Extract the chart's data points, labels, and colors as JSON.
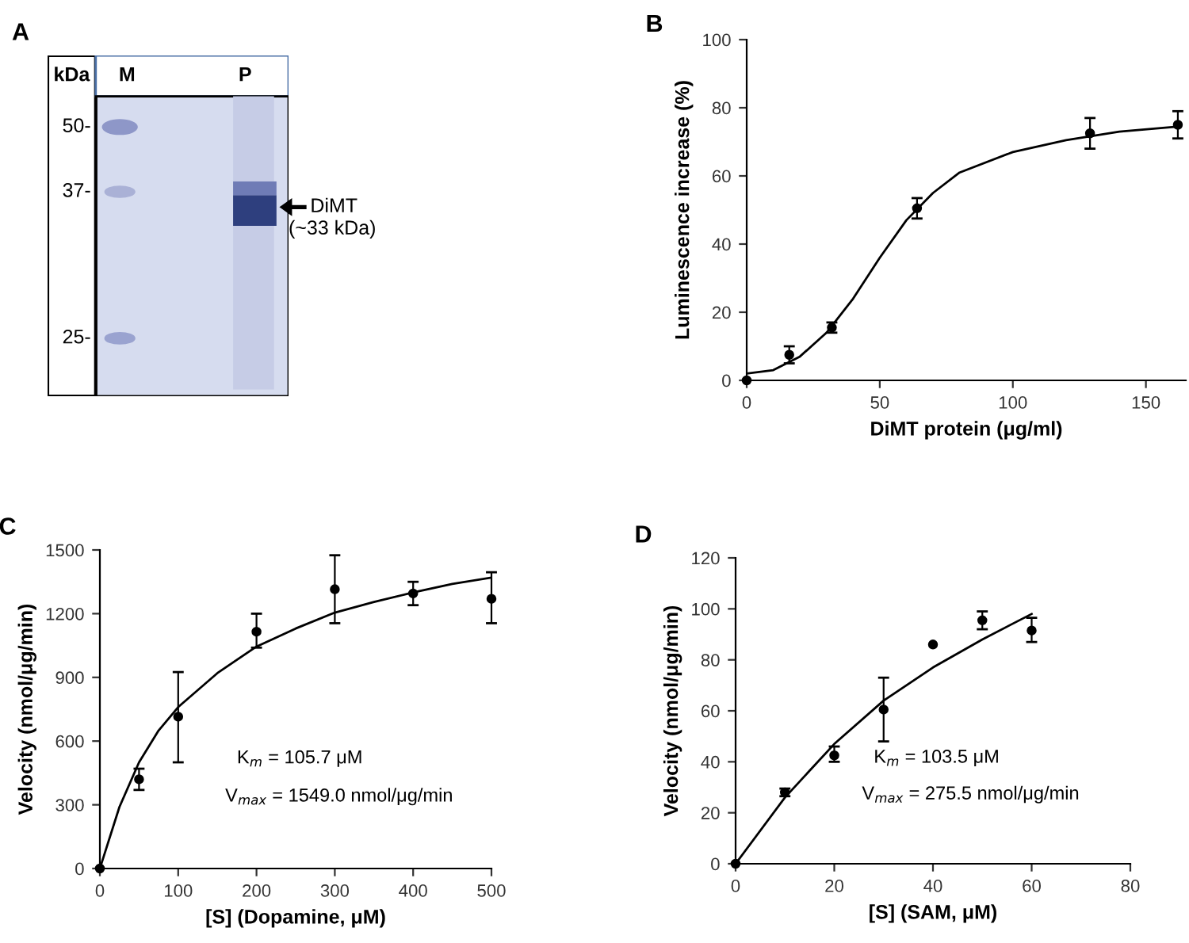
{
  "chart_data": [
    {
      "type": "other",
      "title": "A",
      "annotations": [
        "kDa",
        "M",
        "P",
        "50-",
        "37-",
        "25-",
        "DiMT",
        "(~33 kDa)"
      ]
    },
    {
      "type": "scatter",
      "title": "B",
      "xlabel": "DiMT protein (μg/ml)",
      "ylabel": "Luminescence increase (%)",
      "xlim": [
        0,
        165
      ],
      "ylim": [
        0,
        100
      ],
      "xticks": [
        0,
        50,
        100,
        150
      ],
      "yticks": [
        0,
        20,
        40,
        60,
        80,
        100
      ],
      "series": [
        {
          "type": "scatter",
          "marker": "circle",
          "color": "#000000",
          "x": [
            0,
            16,
            32,
            64,
            129,
            162
          ],
          "values": [
            0,
            7.5,
            15.5,
            50.5,
            72.5,
            75
          ],
          "errors": [
            null,
            2.5,
            1.5,
            3,
            4.5,
            4
          ]
        },
        {
          "type": "line",
          "color": "#000000",
          "x": [
            0,
            10,
            20,
            30,
            40,
            50,
            60,
            70,
            80,
            100,
            120,
            140,
            162
          ],
          "values": [
            2,
            3,
            7,
            14,
            24,
            36,
            47,
            55,
            61,
            67,
            70.5,
            73,
            74.5
          ]
        }
      ]
    },
    {
      "type": "scatter",
      "title": "C",
      "xlabel": "[S] (Dopamine, μM)",
      "ylabel": "Velocity (nmol/μg/min)",
      "xlim": [
        0,
        500
      ],
      "ylim": [
        0,
        1500
      ],
      "xticks": [
        0,
        100,
        200,
        300,
        400,
        500
      ],
      "yticks": [
        0,
        300,
        600,
        900,
        1200,
        1500
      ],
      "annotations": [
        "K$_{m}$ = 105.7 μM",
        "V$_{max}$ = 1549.0 nmol/μg/min"
      ],
      "series": [
        {
          "type": "scatter",
          "marker": "circle",
          "color": "#000000",
          "x": [
            0,
            50,
            100,
            200,
            300,
            400,
            500
          ],
          "values": [
            0,
            420,
            715,
            1115,
            1315,
            1295,
            1270
          ],
          "errors": [
            null,
            [
              370,
              470
            ],
            [
              500,
              925
            ],
            [
              1040,
              1200
            ],
            [
              1155,
              1475
            ],
            [
              1240,
              1350
            ],
            [
              1155,
              1395
            ]
          ]
        },
        {
          "type": "line",
          "color": "#000000",
          "x": [
            0,
            25,
            50,
            75,
            100,
            150,
            200,
            250,
            300,
            350,
            400,
            450,
            500
          ],
          "values": [
            0,
            290,
            500,
            650,
            760,
            920,
            1045,
            1130,
            1205,
            1255,
            1300,
            1340,
            1370
          ]
        }
      ]
    },
    {
      "type": "scatter",
      "title": "D",
      "xlabel": "[S] (SAM, μM)",
      "ylabel": "Velocity (nmol/μg/min)",
      "xlim": [
        0,
        80
      ],
      "ylim": [
        0,
        120
      ],
      "xticks": [
        0,
        20,
        40,
        60,
        80
      ],
      "yticks": [
        0,
        20,
        40,
        60,
        80,
        100,
        120
      ],
      "annotations": [
        "K$_{m}$ = 103.5 μM",
        "V$_{max}$ = 275.5 nmol/μg/min"
      ],
      "series": [
        {
          "type": "scatter",
          "marker": "circle",
          "color": "#000000",
          "x": [
            0,
            10,
            20,
            30,
            40,
            50,
            60
          ],
          "values": [
            0,
            28,
            42.5,
            60.5,
            86,
            95.5,
            91.5
          ],
          "errors": [
            null,
            1.5,
            [
              40,
              46
            ],
            [
              48,
              73
            ],
            null,
            [
              92,
              99
            ],
            [
              87,
              96.5
            ]
          ]
        },
        {
          "type": "line",
          "color": "#000000",
          "x": [
            0,
            10,
            20,
            30,
            40,
            50,
            60
          ],
          "values": [
            0,
            26,
            47,
            64,
            77,
            88,
            98
          ]
        }
      ]
    }
  ]
}
